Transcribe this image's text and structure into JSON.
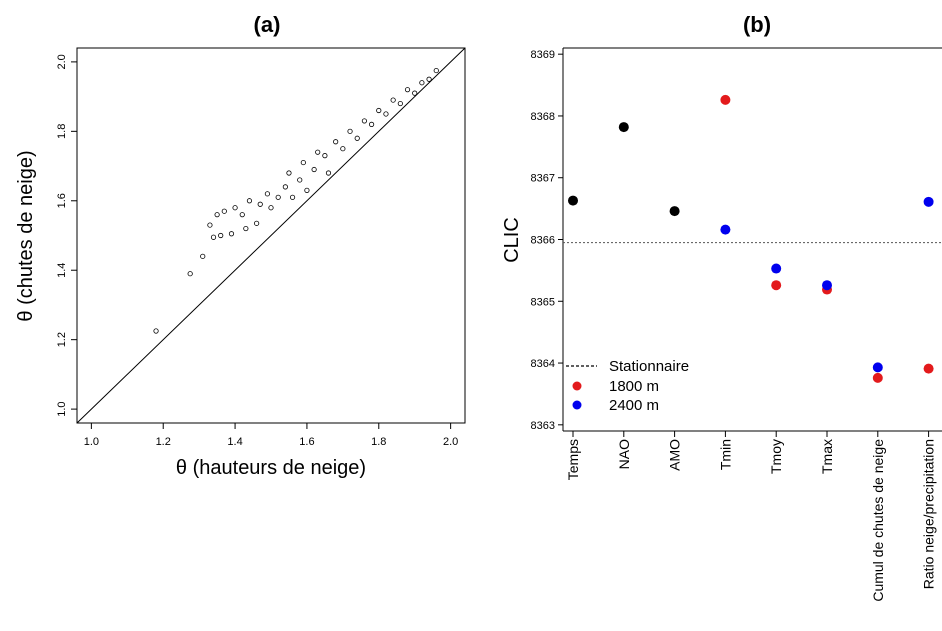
{
  "chart_data": [
    {
      "type": "scatter",
      "title": "(a)",
      "xlabel": "θ (hauteurs de neige)",
      "ylabel": "θ (chutes de neige)",
      "xlim": [
        0.96,
        2.04
      ],
      "ylim": [
        0.96,
        2.04
      ],
      "xticks": [
        "1.0",
        "1.2",
        "1.4",
        "1.6",
        "1.8",
        "2.0"
      ],
      "yticks": [
        "1.0",
        "1.2",
        "1.4",
        "1.6",
        "1.8",
        "2.0"
      ],
      "reference_line": "y = x",
      "marker": "open-circle",
      "points": [
        [
          1.18,
          1.225
        ],
        [
          1.275,
          1.39
        ],
        [
          1.31,
          1.44
        ],
        [
          1.34,
          1.495
        ],
        [
          1.36,
          1.5
        ],
        [
          1.39,
          1.505
        ],
        [
          1.33,
          1.53
        ],
        [
          1.35,
          1.56
        ],
        [
          1.37,
          1.57
        ],
        [
          1.43,
          1.52
        ],
        [
          1.46,
          1.535
        ],
        [
          1.42,
          1.56
        ],
        [
          1.4,
          1.58
        ],
        [
          1.44,
          1.6
        ],
        [
          1.47,
          1.59
        ],
        [
          1.49,
          1.62
        ],
        [
          1.52,
          1.61
        ],
        [
          1.5,
          1.58
        ],
        [
          1.54,
          1.64
        ],
        [
          1.55,
          1.68
        ],
        [
          1.56,
          1.61
        ],
        [
          1.58,
          1.66
        ],
        [
          1.59,
          1.71
        ],
        [
          1.6,
          1.63
        ],
        [
          1.62,
          1.69
        ],
        [
          1.63,
          1.74
        ],
        [
          1.65,
          1.73
        ],
        [
          1.66,
          1.68
        ],
        [
          1.68,
          1.77
        ],
        [
          1.7,
          1.75
        ],
        [
          1.72,
          1.8
        ],
        [
          1.74,
          1.78
        ],
        [
          1.76,
          1.83
        ],
        [
          1.78,
          1.82
        ],
        [
          1.8,
          1.86
        ],
        [
          1.82,
          1.85
        ],
        [
          1.84,
          1.89
        ],
        [
          1.86,
          1.88
        ],
        [
          1.88,
          1.92
        ],
        [
          1.9,
          1.91
        ],
        [
          1.92,
          1.94
        ],
        [
          1.94,
          1.95
        ],
        [
          1.96,
          1.975
        ]
      ]
    },
    {
      "type": "scatter",
      "title": "(b)",
      "ylabel": "CLIC",
      "categories": [
        "Temps",
        "NAO",
        "AMO",
        "Tmin",
        "Tmoy",
        "Tmax",
        "Cumul de chutes de neige",
        "Ratio neige/precipitation"
      ],
      "ylim": [
        8362.9,
        8369.1
      ],
      "yticks": [
        "8363",
        "8364",
        "8365",
        "8366",
        "8367",
        "8368",
        "8369"
      ],
      "reference": {
        "name": "Stationnaire",
        "value": 8365.95,
        "style": "dotted"
      },
      "series": [
        {
          "name": "",
          "color": "#000000",
          "values": [
            8366.63,
            8367.82,
            8366.46,
            null,
            null,
            null,
            null,
            null
          ]
        },
        {
          "name": "1800 m",
          "color": "#e31a1c",
          "values": [
            null,
            null,
            null,
            8368.26,
            8365.26,
            8365.19,
            8363.76,
            8363.91
          ]
        },
        {
          "name": "2400 m",
          "color": "#0000ee",
          "values": [
            null,
            null,
            null,
            8366.16,
            8365.53,
            8365.26,
            8363.93,
            8366.61
          ]
        }
      ],
      "legend": [
        "Stationnaire",
        "1800 m",
        "2400 m"
      ],
      "legend_position": "bottom-left"
    }
  ]
}
